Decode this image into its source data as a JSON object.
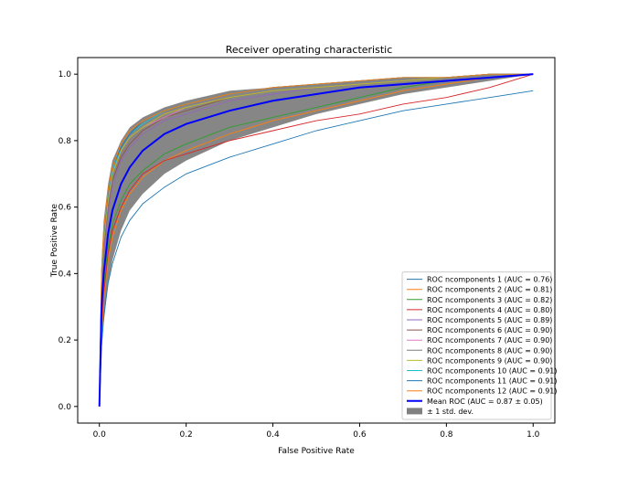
{
  "chart_data": {
    "type": "line",
    "title": "Receiver operating characteristic",
    "xlabel": "False Positive Rate",
    "ylabel": "True Positive Rate",
    "xlim": [
      -0.05,
      1.05
    ],
    "ylim": [
      -0.05,
      1.05
    ],
    "xticks": [
      "0.0",
      "0.2",
      "0.4",
      "0.6",
      "0.8",
      "1.0"
    ],
    "yticks": [
      "0.0",
      "0.2",
      "0.4",
      "0.6",
      "0.8",
      "1.0"
    ],
    "grid": false,
    "legend_position": "bottom-right",
    "x": [
      0,
      0.005,
      0.01,
      0.02,
      0.03,
      0.05,
      0.07,
      0.1,
      0.15,
      0.2,
      0.3,
      0.4,
      0.5,
      0.6,
      0.7,
      0.8,
      0.9,
      1.0
    ],
    "series": [
      {
        "name": "ROC ncomponents 1 (AUC = 0.76)",
        "color": "#1f77b4",
        "values": [
          0,
          0.18,
          0.27,
          0.37,
          0.43,
          0.51,
          0.56,
          0.61,
          0.66,
          0.7,
          0.75,
          0.79,
          0.83,
          0.86,
          0.89,
          0.91,
          0.93,
          0.95
        ]
      },
      {
        "name": "ROC ncomponents 2 (AUC = 0.81)",
        "color": "#ff7f0e",
        "values": [
          0,
          0.22,
          0.32,
          0.44,
          0.51,
          0.59,
          0.64,
          0.69,
          0.74,
          0.77,
          0.82,
          0.86,
          0.89,
          0.92,
          0.95,
          0.97,
          0.99,
          1.0
        ]
      },
      {
        "name": "ROC ncomponents 3 (AUC = 0.82)",
        "color": "#2ca02c",
        "values": [
          0,
          0.26,
          0.36,
          0.48,
          0.55,
          0.62,
          0.67,
          0.71,
          0.76,
          0.79,
          0.84,
          0.87,
          0.9,
          0.93,
          0.96,
          0.98,
          0.99,
          1.0
        ]
      },
      {
        "name": "ROC ncomponents 4 (AUC = 0.80)",
        "color": "#d62728",
        "values": [
          0,
          0.24,
          0.34,
          0.46,
          0.53,
          0.6,
          0.65,
          0.7,
          0.74,
          0.76,
          0.8,
          0.83,
          0.86,
          0.88,
          0.91,
          0.93,
          0.96,
          1.0
        ]
      },
      {
        "name": "ROC ncomponents 5 (AUC = 0.89)",
        "color": "#9467bd",
        "values": [
          0,
          0.34,
          0.46,
          0.58,
          0.66,
          0.74,
          0.78,
          0.82,
          0.86,
          0.88,
          0.92,
          0.94,
          0.96,
          0.97,
          0.98,
          0.99,
          1.0,
          1.0
        ]
      },
      {
        "name": "ROC ncomponents 6 (AUC = 0.90)",
        "color": "#8c564b",
        "values": [
          0,
          0.36,
          0.48,
          0.6,
          0.68,
          0.75,
          0.79,
          0.83,
          0.87,
          0.89,
          0.93,
          0.95,
          0.96,
          0.97,
          0.98,
          0.99,
          1.0,
          1.0
        ]
      },
      {
        "name": "ROC ncomponents 7 (AUC = 0.90)",
        "color": "#e377c2",
        "values": [
          0,
          0.37,
          0.49,
          0.61,
          0.69,
          0.76,
          0.8,
          0.84,
          0.87,
          0.9,
          0.93,
          0.95,
          0.96,
          0.97,
          0.98,
          0.99,
          1.0,
          1.0
        ]
      },
      {
        "name": "ROC ncomponents 8 (AUC = 0.90)",
        "color": "#7f7f7f",
        "values": [
          0,
          0.37,
          0.49,
          0.61,
          0.69,
          0.76,
          0.8,
          0.84,
          0.88,
          0.9,
          0.93,
          0.95,
          0.96,
          0.97,
          0.98,
          0.99,
          1.0,
          1.0
        ]
      },
      {
        "name": "ROC ncomponents 9 (AUC = 0.90)",
        "color": "#bcbd22",
        "values": [
          0,
          0.38,
          0.5,
          0.62,
          0.7,
          0.77,
          0.81,
          0.84,
          0.88,
          0.9,
          0.93,
          0.95,
          0.96,
          0.97,
          0.98,
          0.99,
          1.0,
          1.0
        ]
      },
      {
        "name": "ROC ncomponents 10 (AUC = 0.91)",
        "color": "#17becf",
        "values": [
          0,
          0.4,
          0.52,
          0.64,
          0.71,
          0.78,
          0.82,
          0.85,
          0.89,
          0.91,
          0.94,
          0.96,
          0.97,
          0.98,
          0.99,
          0.99,
          1.0,
          1.0
        ]
      },
      {
        "name": "ROC ncomponents 11 (AUC = 0.91)",
        "color": "#1f77b4",
        "values": [
          0,
          0.4,
          0.52,
          0.64,
          0.72,
          0.78,
          0.82,
          0.86,
          0.89,
          0.91,
          0.94,
          0.96,
          0.97,
          0.98,
          0.99,
          0.99,
          1.0,
          1.0
        ]
      },
      {
        "name": "ROC ncomponents 12 (AUC = 0.91)",
        "color": "#ff7f0e",
        "values": [
          0,
          0.41,
          0.53,
          0.65,
          0.72,
          0.79,
          0.83,
          0.86,
          0.89,
          0.91,
          0.94,
          0.96,
          0.97,
          0.98,
          0.99,
          0.99,
          1.0,
          1.0
        ]
      }
    ],
    "mean": {
      "name": "Mean ROC (AUC = 0.87 ± 0.05)",
      "color": "#0000ff",
      "values": [
        0,
        0.3,
        0.4,
        0.52,
        0.59,
        0.67,
        0.72,
        0.77,
        0.82,
        0.85,
        0.89,
        0.92,
        0.94,
        0.96,
        0.97,
        0.98,
        0.99,
        1.0
      ]
    },
    "band": {
      "name": "± 1 std. dev.",
      "color": "#808080",
      "upper": [
        0,
        0.44,
        0.56,
        0.67,
        0.74,
        0.8,
        0.84,
        0.87,
        0.9,
        0.92,
        0.95,
        0.96,
        0.97,
        0.98,
        0.99,
        0.99,
        1.0,
        1.0
      ],
      "lower": [
        0,
        0.17,
        0.25,
        0.37,
        0.44,
        0.53,
        0.59,
        0.64,
        0.7,
        0.74,
        0.8,
        0.84,
        0.88,
        0.91,
        0.94,
        0.96,
        0.98,
        1.0
      ]
    }
  }
}
